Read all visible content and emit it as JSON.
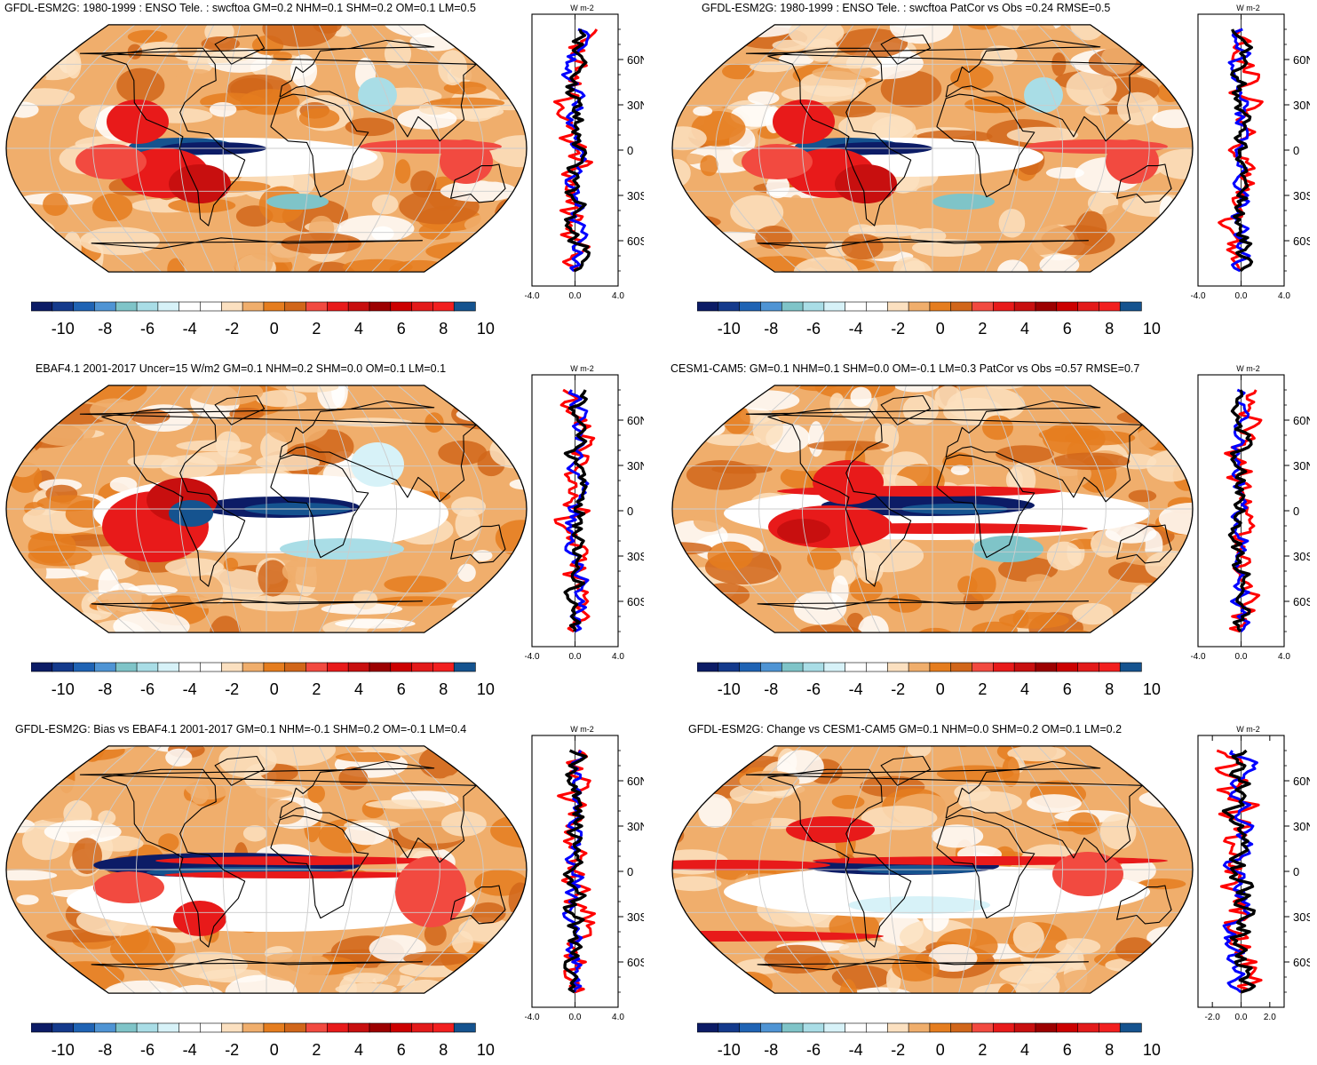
{
  "colorbar": {
    "colors": [
      "#0c1c66",
      "#143a8c",
      "#1f63b4",
      "#4f94d4",
      "#7fc4c8",
      "#a9dde6",
      "#d7f2f8",
      "#ffffff",
      "#ffffff",
      "#fbe0c0",
      "#f0ae6c",
      "#e57d1f",
      "#d1661a",
      "#f24a40",
      "#e81a1a",
      "#c80f0f",
      "#9c0000",
      "#cc0000",
      "#e31a1a",
      "#f21f1f",
      "#15538f"
    ],
    "labels": [
      "-10",
      "-8",
      "-6",
      "-4",
      "-2",
      "0",
      "2",
      "4",
      "6",
      "8",
      "10"
    ]
  },
  "zonal_lat_labels": [
    "60N",
    "30N",
    "0",
    "30S",
    "60S"
  ],
  "zonal_unit": "W m-2",
  "panels": [
    {
      "id": "p1",
      "title": "GFDL-ESM2G: 1980-1999 : ENSO Tele. : swcftoa GM=0.2 NHM=0.1 SHM=0.2 OM=0.1 LM=0.5",
      "x_ticks": [
        "-4.0",
        "0.0",
        "4.0"
      ],
      "xrange": [
        -4,
        4
      ],
      "variant": 0
    },
    {
      "id": "p2",
      "title": "GFDL-ESM2G: 1980-1999 : ENSO Tele. : swcftoa PatCor vs Obs =0.24 RMSE=0.5",
      "x_ticks": [
        "-4.0",
        "0.0",
        "4.0"
      ],
      "xrange": [
        -4,
        4
      ],
      "variant": 0
    },
    {
      "id": "p3",
      "title": "EBAF4.1 2001-2017 Uncer=15 W/m2 GM=0.1 NHM=0.2 SHM=0.0 OM=0.1 LM=0.1",
      "x_ticks": [
        "-4.0",
        "0.0",
        "4.0"
      ],
      "xrange": [
        -4,
        4
      ],
      "variant": 1
    },
    {
      "id": "p4",
      "title": "CESM1-CAM5: GM=0.1 NHM=0.1 SHM=0.0 OM=-0.1 LM=0.3 PatCor vs Obs =0.57 RMSE=0.7",
      "x_ticks": [
        "-4.0",
        "0.0",
        "4.0"
      ],
      "xrange": [
        -4,
        4
      ],
      "variant": 2
    },
    {
      "id": "p5",
      "title": "GFDL-ESM2G: Bias vs EBAF4.1 2001-2017 GM=0.1 NHM=-0.1 SHM=0.2 OM=-0.1 LM=0.4",
      "x_ticks": [
        "-4.0",
        "0.0",
        "4.0"
      ],
      "xrange": [
        -4,
        4
      ],
      "variant": 3
    },
    {
      "id": "p6",
      "title": "GFDL-ESM2G: Change vs CESM1-CAM5 GM=0.1 NHM=0.0 SHM=0.2 OM=0.1 LM=0.2",
      "x_ticks": [
        "-2.0",
        "0.0",
        "2.0"
      ],
      "xrange": [
        -3,
        3
      ],
      "variant": 4
    }
  ]
}
